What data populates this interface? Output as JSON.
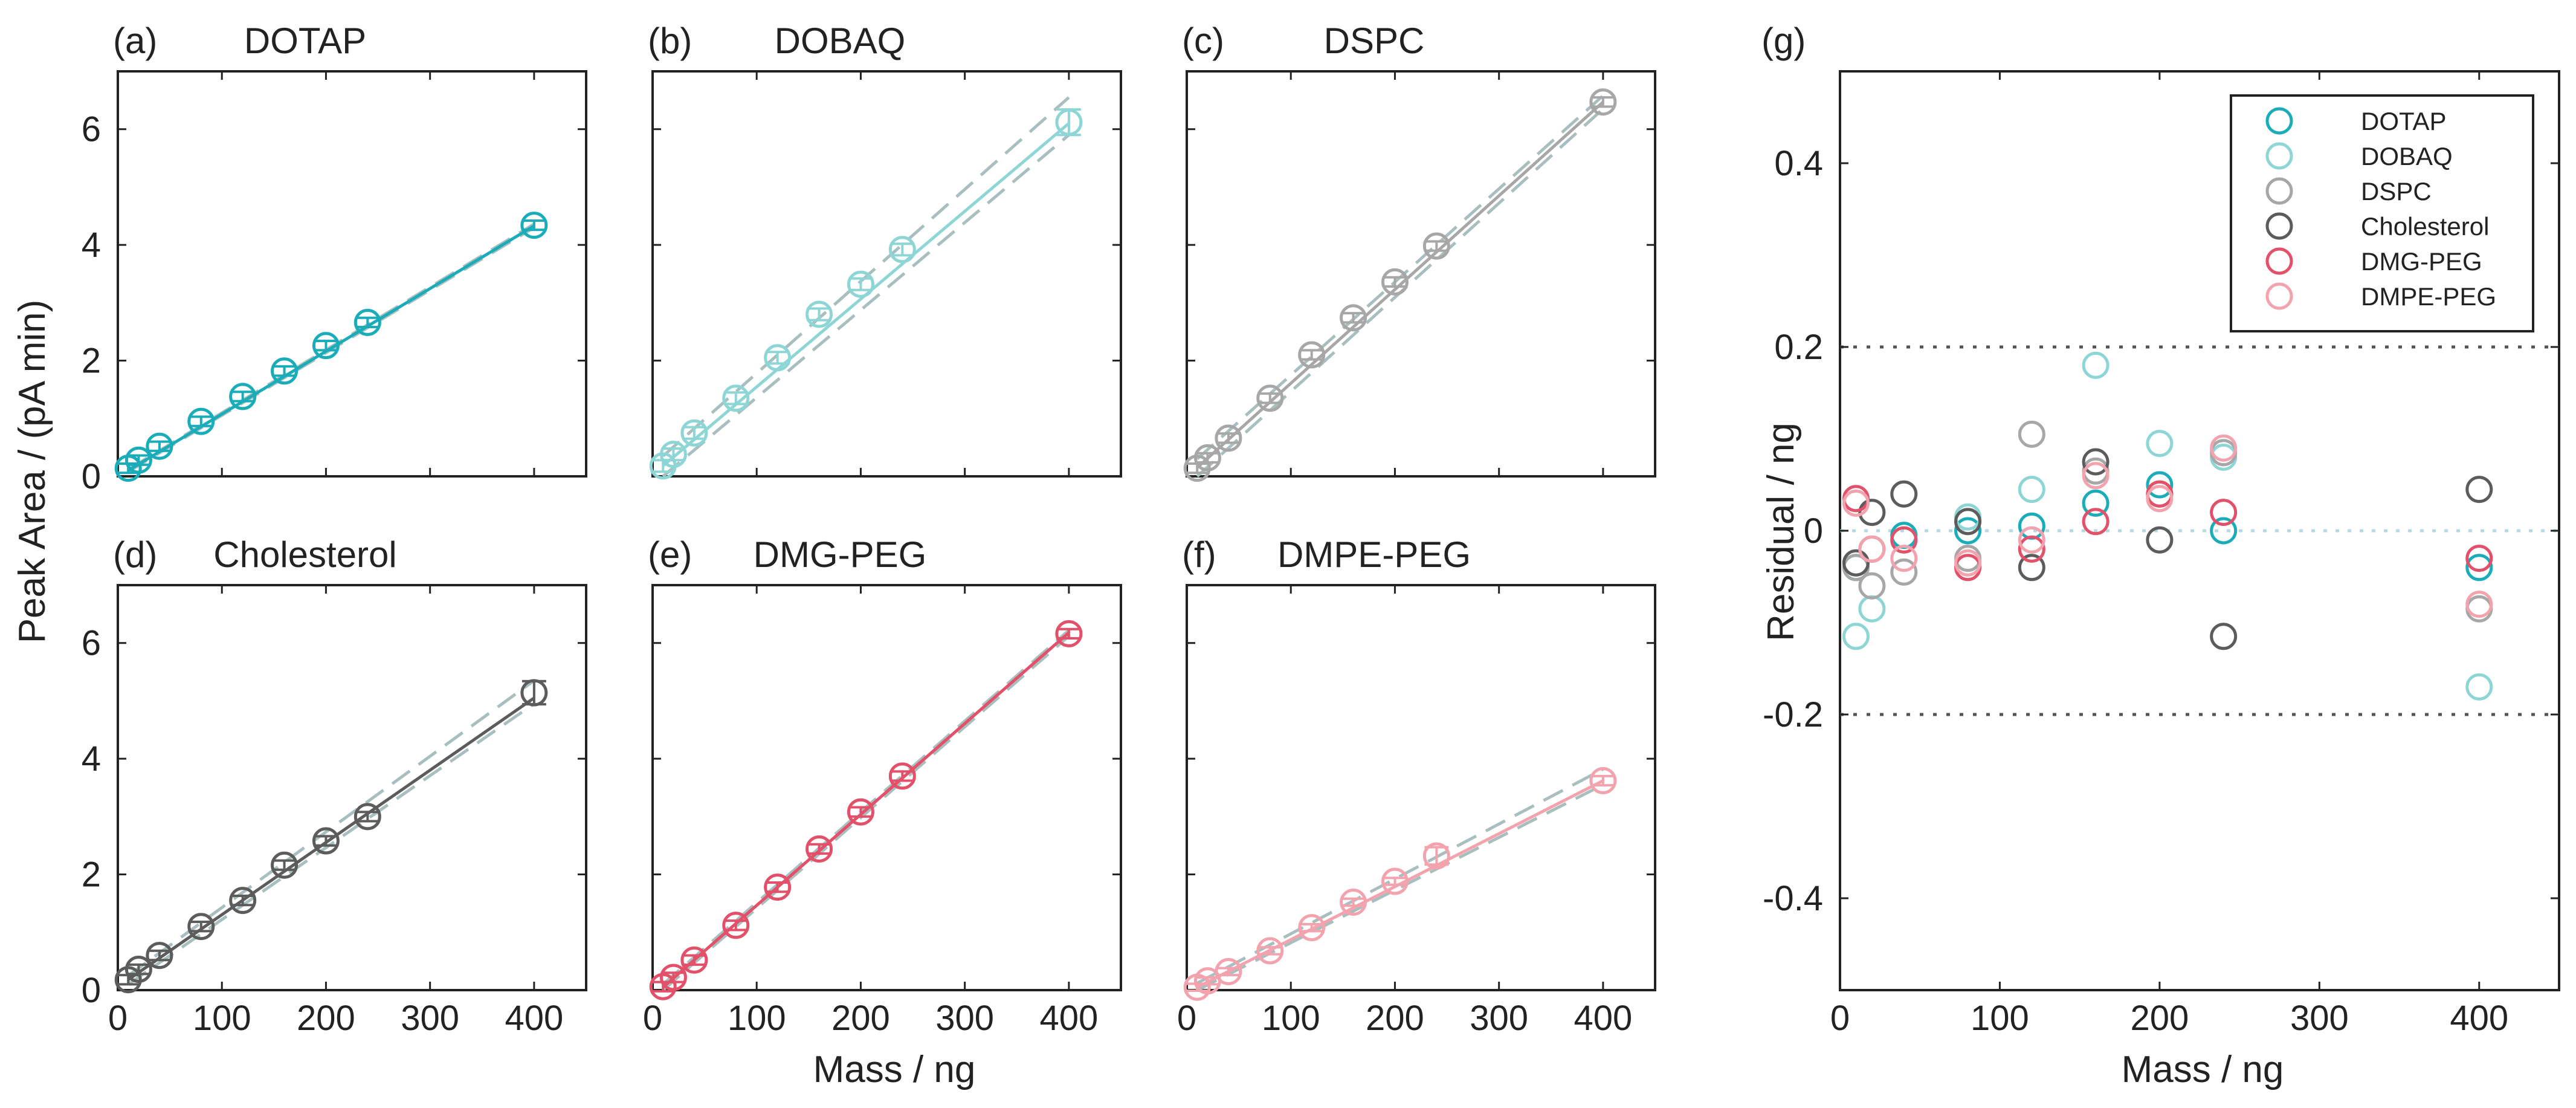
{
  "figure": {
    "ylabel": "Peak Area / (pA min)",
    "xlabel": "Mass / ng",
    "g_ylabel": "Residual / ng",
    "g_xlabel": "Mass / ng"
  },
  "colors": {
    "DOTAP": "#1aacb8",
    "DOBAQ": "#8ed6d6",
    "DSPC": "#a7a7a7",
    "Cholesterol": "#5c5c5c",
    "DMG-PEG": "#e35069",
    "DMPE-PEG": "#f3a3ae",
    "dashed": "#a9bfbf",
    "dotted": "#555555",
    "zeroline": "#b6d8e0"
  },
  "chart_data": [
    {
      "type": "scatter",
      "panel": "(a)",
      "title": "DOTAP",
      "x": [
        10,
        20,
        40,
        80,
        120,
        160,
        200,
        240,
        400
      ],
      "y": [
        0.14,
        0.28,
        0.52,
        0.95,
        1.38,
        1.82,
        2.26,
        2.66,
        4.34
      ],
      "yerr": [
        0.08,
        0.08,
        0.08,
        0.08,
        0.08,
        0.08,
        0.08,
        0.08,
        0.08
      ],
      "fit": [
        [
          10,
          0.1
        ],
        [
          400,
          4.33
        ]
      ],
      "band": [
        [
          [
            10,
            0.12
          ],
          [
            400,
            4.36
          ]
        ],
        [
          [
            10,
            0.08
          ],
          [
            400,
            4.3
          ]
        ]
      ],
      "xlim": [
        0,
        450
      ],
      "ylim": [
        0,
        7
      ],
      "xticks": [
        0,
        100,
        200,
        300,
        400
      ],
      "yticks": [
        0,
        2,
        4,
        6
      ]
    },
    {
      "type": "scatter",
      "panel": "(b)",
      "title": "DOBAQ",
      "x": [
        10,
        20,
        40,
        80,
        120,
        160,
        200,
        240,
        400
      ],
      "y": [
        0.18,
        0.38,
        0.75,
        1.35,
        2.05,
        2.8,
        3.32,
        3.92,
        6.12
      ],
      "yerr": [
        0.1,
        0.1,
        0.1,
        0.1,
        0.1,
        0.1,
        0.1,
        0.1,
        0.22
      ],
      "fit": [
        [
          10,
          0.18
        ],
        [
          400,
          6.1
        ]
      ],
      "band": [
        [
          [
            10,
            0.35
          ],
          [
            400,
            6.55
          ]
        ],
        [
          [
            10,
            0.0
          ],
          [
            400,
            5.9
          ]
        ]
      ],
      "xlim": [
        0,
        450
      ],
      "ylim": [
        0,
        7
      ],
      "xticks": [
        0,
        100,
        200,
        300,
        400
      ],
      "yticks": [
        0,
        2,
        4,
        6
      ]
    },
    {
      "type": "scatter",
      "panel": "(c)",
      "title": "DSPC",
      "x": [
        10,
        20,
        40,
        80,
        120,
        160,
        200,
        240,
        400
      ],
      "y": [
        0.14,
        0.32,
        0.66,
        1.35,
        2.1,
        2.74,
        3.36,
        3.98,
        6.47
      ],
      "yerr": [
        0.08,
        0.08,
        0.08,
        0.08,
        0.08,
        0.08,
        0.08,
        0.08,
        0.08
      ],
      "fit": [
        [
          10,
          0.15
        ],
        [
          400,
          6.47
        ]
      ],
      "band": [
        [
          [
            10,
            0.3
          ],
          [
            400,
            6.58
          ]
        ],
        [
          [
            10,
            0.0
          ],
          [
            400,
            6.35
          ]
        ]
      ],
      "xlim": [
        0,
        450
      ],
      "ylim": [
        0,
        7
      ],
      "xticks": [
        0,
        100,
        200,
        300,
        400
      ],
      "yticks": [
        0,
        2,
        4,
        6
      ]
    },
    {
      "type": "scatter",
      "panel": "(d)",
      "title": "Cholesterol",
      "x": [
        10,
        20,
        40,
        80,
        120,
        160,
        200,
        240,
        400
      ],
      "y": [
        0.18,
        0.36,
        0.6,
        1.1,
        1.55,
        2.16,
        2.58,
        3.0,
        5.14
      ],
      "yerr": [
        0.08,
        0.08,
        0.08,
        0.08,
        0.08,
        0.08,
        0.08,
        0.08,
        0.2
      ],
      "fit": [
        [
          10,
          0.18
        ],
        [
          400,
          5.05
        ]
      ],
      "band": [
        [
          [
            10,
            0.25
          ],
          [
            400,
            5.35
          ]
        ],
        [
          [
            10,
            0.1
          ],
          [
            400,
            4.95
          ]
        ]
      ],
      "xlim": [
        0,
        450
      ],
      "ylim": [
        0,
        7
      ],
      "xticks": [
        0,
        100,
        200,
        300,
        400
      ],
      "yticks": [
        0,
        2,
        4,
        6
      ]
    },
    {
      "type": "scatter",
      "panel": "(e)",
      "title": "DMG-PEG",
      "x": [
        10,
        20,
        40,
        80,
        120,
        160,
        200,
        240,
        400
      ],
      "y": [
        0.06,
        0.22,
        0.52,
        1.12,
        1.78,
        2.44,
        3.08,
        3.7,
        6.16
      ],
      "yerr": [
        0.08,
        0.08,
        0.08,
        0.08,
        0.08,
        0.08,
        0.08,
        0.08,
        0.08
      ],
      "fit": [
        [
          10,
          0.05
        ],
        [
          400,
          6.18
        ]
      ],
      "band": [
        [
          [
            10,
            0.1
          ],
          [
            400,
            6.22
          ]
        ],
        [
          [
            10,
            0.0
          ],
          [
            400,
            6.12
          ]
        ]
      ],
      "xlim": [
        0,
        450
      ],
      "ylim": [
        0,
        7
      ],
      "xticks": [
        0,
        100,
        200,
        300,
        400
      ],
      "yticks": [
        0,
        2,
        4,
        6
      ]
    },
    {
      "type": "scatter",
      "panel": "(f)",
      "title": "DMPE-PEG",
      "x": [
        10,
        20,
        40,
        80,
        120,
        160,
        200,
        240,
        400
      ],
      "y": [
        0.05,
        0.16,
        0.32,
        0.68,
        1.08,
        1.52,
        1.88,
        2.32,
        3.62
      ],
      "yerr": [
        0.06,
        0.06,
        0.06,
        0.06,
        0.06,
        0.06,
        0.06,
        0.15,
        0.08
      ],
      "fit": [
        [
          10,
          0.05
        ],
        [
          400,
          3.62
        ]
      ],
      "band": [
        [
          [
            10,
            0.12
          ],
          [
            400,
            3.82
          ]
        ],
        [
          [
            10,
            0.0
          ],
          [
            400,
            3.55
          ]
        ]
      ],
      "xlim": [
        0,
        450
      ],
      "ylim": [
        0,
        7
      ],
      "xticks": [
        0,
        100,
        200,
        300,
        400
      ],
      "yticks": [
        0,
        2,
        4,
        6
      ]
    },
    {
      "type": "scatter",
      "panel": "(g)",
      "title": "",
      "xlabel": "Mass / ng",
      "ylabel": "Residual / ng",
      "xlim": [
        0,
        450
      ],
      "ylim": [
        -0.5,
        0.5
      ],
      "xticks": [
        0,
        100,
        200,
        300,
        400
      ],
      "yticks": [
        -0.4,
        -0.2,
        0,
        0.2,
        0.4
      ],
      "ytick_labels": [
        "-0.4",
        "-0.2",
        "0",
        "0.2",
        "0.4"
      ],
      "reference_lines": [
        0.2,
        0,
        -0.2
      ],
      "legend_position": "top-right",
      "series": [
        {
          "name": "DOTAP",
          "x": [
            10,
            20,
            40,
            80,
            120,
            160,
            200,
            240,
            400
          ],
          "y": [
            -0.04,
            -0.02,
            -0.005,
            0.0,
            0.005,
            0.03,
            0.05,
            0.0,
            -0.04
          ]
        },
        {
          "name": "DOBAQ",
          "x": [
            10,
            20,
            40,
            80,
            120,
            160,
            200,
            240,
            400
          ],
          "y": [
            -0.115,
            -0.085,
            -0.01,
            0.015,
            0.045,
            0.18,
            0.095,
            0.08,
            -0.17
          ]
        },
        {
          "name": "DSPC",
          "x": [
            10,
            20,
            40,
            80,
            120,
            160,
            200,
            240,
            400
          ],
          "y": [
            -0.04,
            -0.06,
            -0.045,
            -0.03,
            0.105,
            0.065,
            0.04,
            0.085,
            -0.085
          ]
        },
        {
          "name": "Cholesterol",
          "x": [
            10,
            20,
            40,
            80,
            120,
            160,
            200,
            240,
            400
          ],
          "y": [
            -0.035,
            0.02,
            0.04,
            0.01,
            -0.04,
            0.075,
            -0.01,
            -0.115,
            0.045
          ]
        },
        {
          "name": "DMG-PEG",
          "x": [
            10,
            20,
            40,
            80,
            120,
            160,
            200,
            240,
            400
          ],
          "y": [
            0.035,
            -0.02,
            -0.01,
            -0.04,
            -0.02,
            0.01,
            0.04,
            0.02,
            -0.03
          ]
        },
        {
          "name": "DMPE-PEG",
          "x": [
            10,
            20,
            40,
            80,
            120,
            160,
            200,
            240,
            400
          ],
          "y": [
            0.03,
            -0.02,
            -0.03,
            -0.035,
            -0.01,
            0.06,
            0.035,
            0.09,
            -0.08
          ]
        }
      ]
    }
  ]
}
